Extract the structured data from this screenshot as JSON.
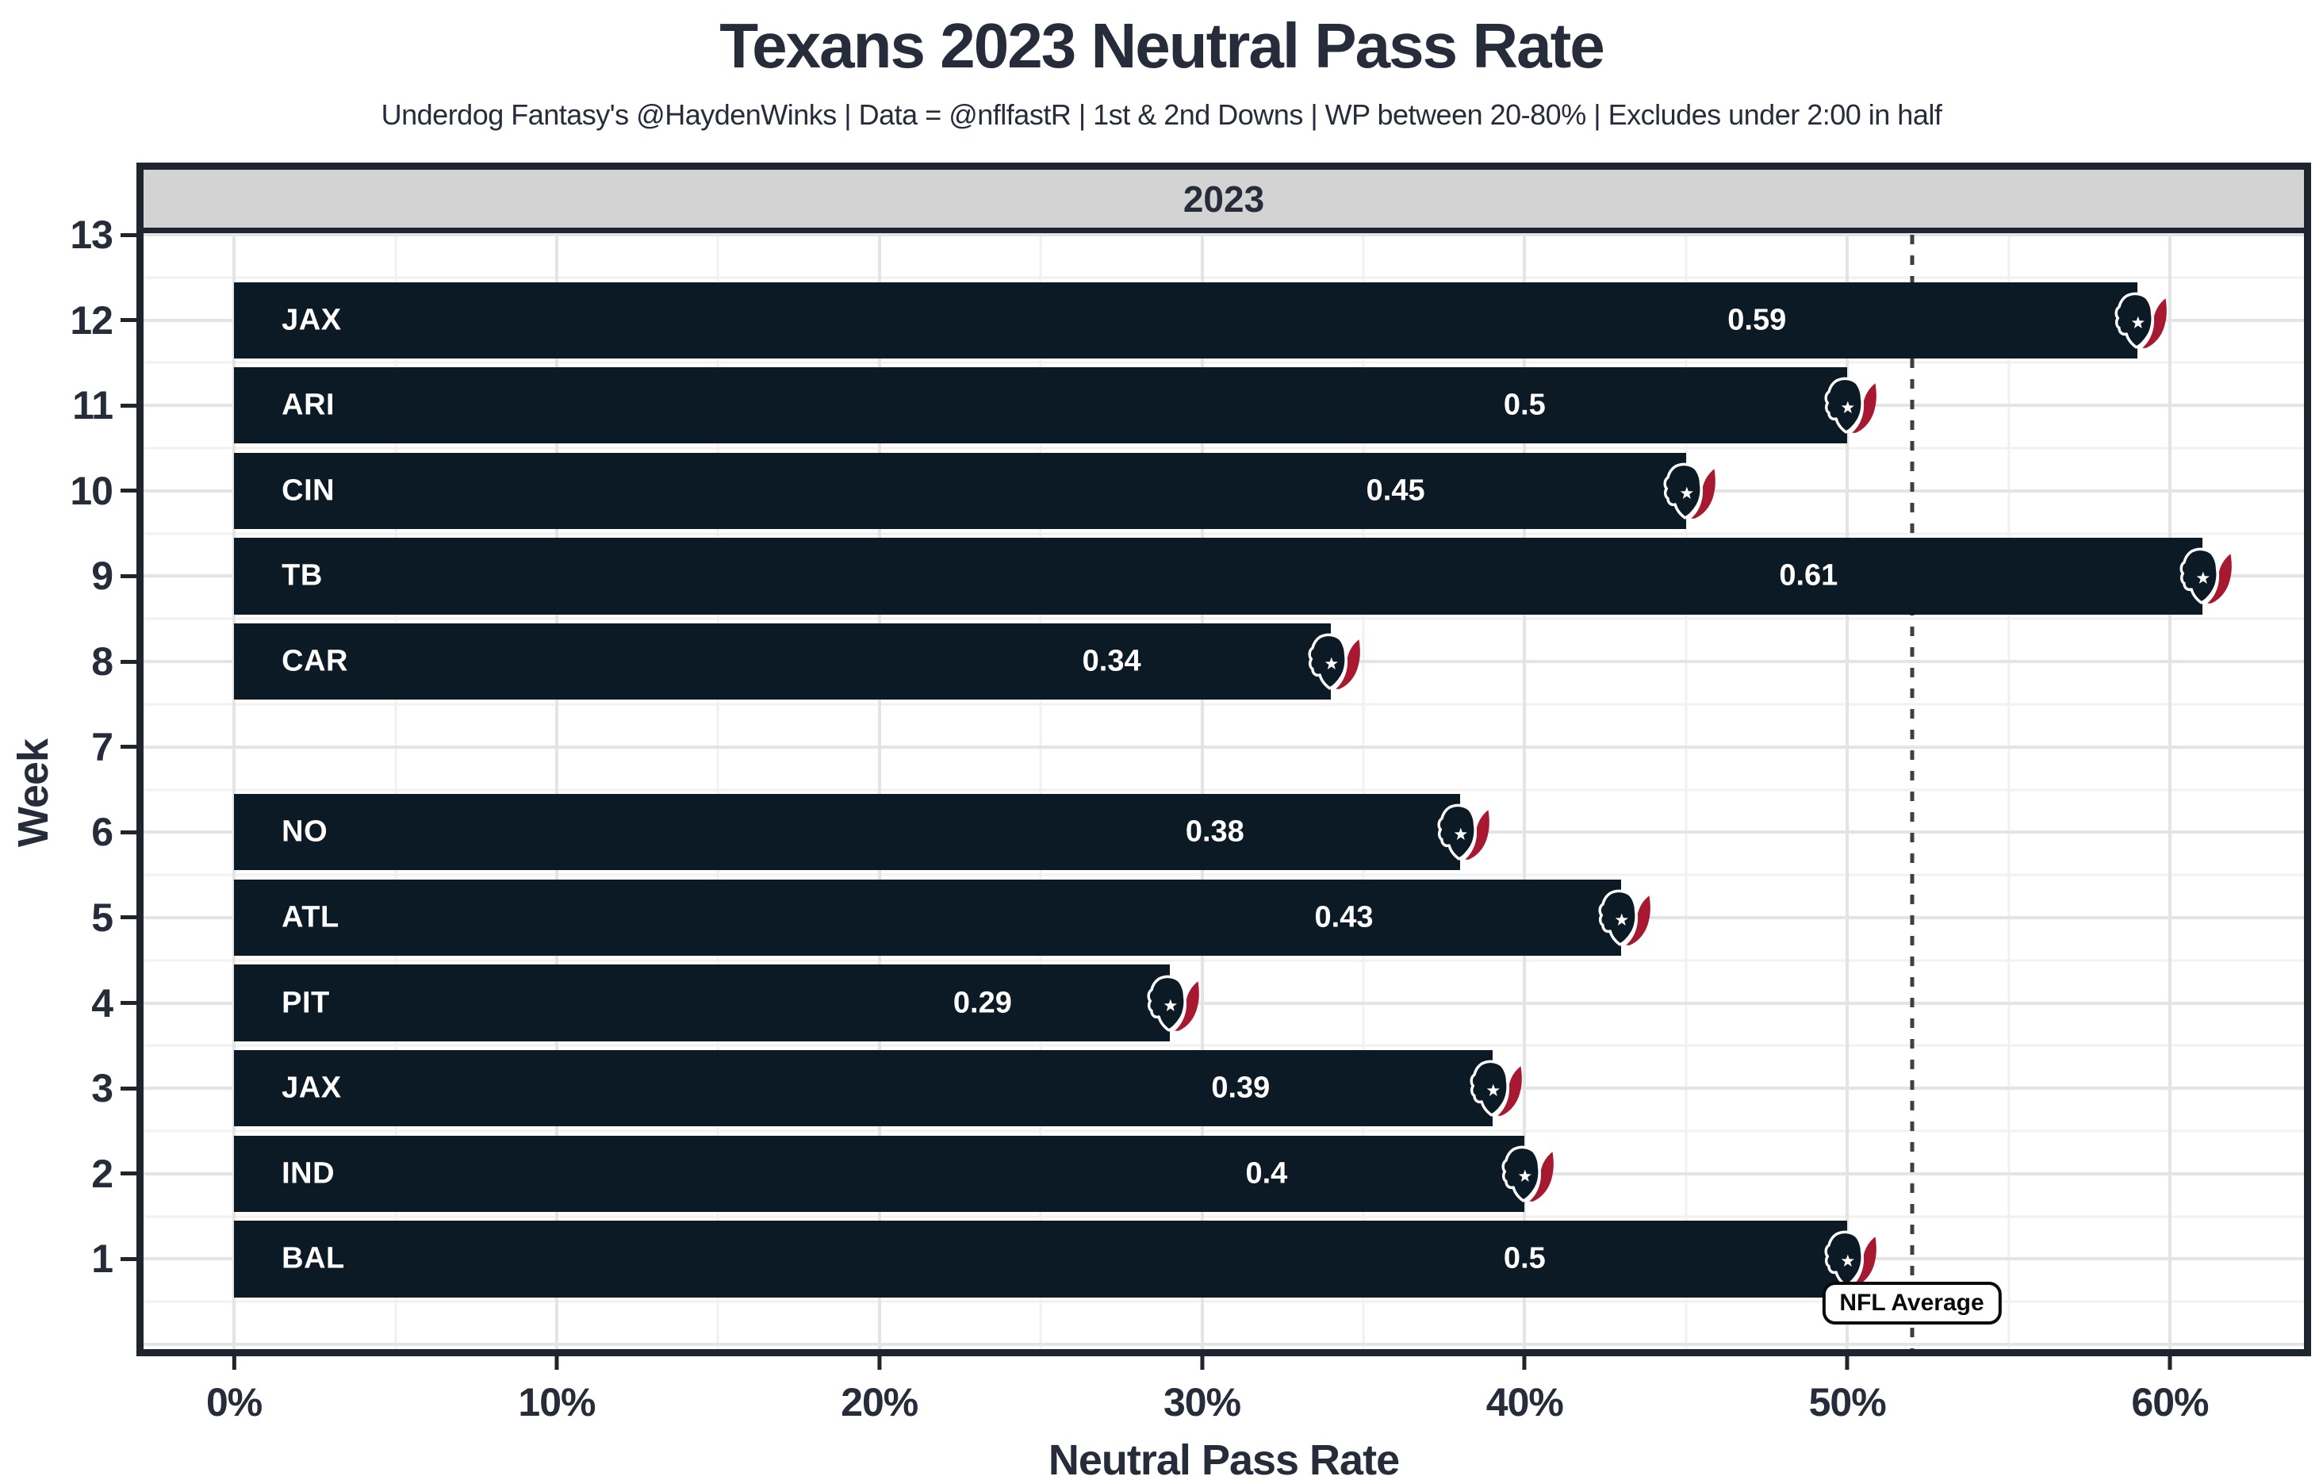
{
  "header": {
    "title": "Texans 2023 Neutral Pass Rate",
    "subtitle": "Underdog Fantasy's @HaydenWinks | Data = @nflfastR | 1st & 2nd Downs | WP between 20-80% | Excludes under 2:00 in half"
  },
  "chart_data": {
    "type": "bar",
    "orientation": "horizontal",
    "title": "Texans 2023 Neutral Pass Rate",
    "facet_label": "2023",
    "xlabel": "Neutral Pass Rate",
    "ylabel": "Week",
    "x_axis": {
      "tick_values": [
        0,
        10,
        20,
        30,
        40,
        50,
        60
      ],
      "tick_labels": [
        "0%",
        "10%",
        "20%",
        "30%",
        "40%",
        "50%",
        "60%"
      ],
      "minor_tick_values": [
        5,
        15,
        25,
        35,
        45,
        55
      ],
      "range_max_pct": 64
    },
    "y_axis": {
      "tick_values": [
        13,
        12,
        11,
        10,
        9,
        8,
        7,
        6,
        5,
        4,
        3,
        2,
        1
      ],
      "week_min": 1,
      "week_max": 13
    },
    "bars": [
      {
        "week": 12,
        "opponent": "JAX",
        "value": 0.59,
        "value_label": "0.59"
      },
      {
        "week": 11,
        "opponent": "ARI",
        "value": 0.5,
        "value_label": "0.5"
      },
      {
        "week": 10,
        "opponent": "CIN",
        "value": 0.45,
        "value_label": "0.45"
      },
      {
        "week": 9,
        "opponent": "TB",
        "value": 0.61,
        "value_label": "0.61"
      },
      {
        "week": 8,
        "opponent": "CAR",
        "value": 0.34,
        "value_label": "0.34"
      },
      {
        "week": 6,
        "opponent": "NO",
        "value": 0.38,
        "value_label": "0.38"
      },
      {
        "week": 5,
        "opponent": "ATL",
        "value": 0.43,
        "value_label": "0.43"
      },
      {
        "week": 4,
        "opponent": "PIT",
        "value": 0.29,
        "value_label": "0.29"
      },
      {
        "week": 3,
        "opponent": "JAX",
        "value": 0.39,
        "value_label": "0.39"
      },
      {
        "week": 2,
        "opponent": "IND",
        "value": 0.4,
        "value_label": "0.4"
      },
      {
        "week": 1,
        "opponent": "BAL",
        "value": 0.5,
        "value_label": "0.5"
      }
    ],
    "nfl_average": {
      "value": 0.52,
      "label": "NFL Average"
    },
    "colors": {
      "bar": "#0c1a26",
      "logo_red": "#A71930",
      "strip_bg": "#d3d3d3",
      "frame": "#20242e",
      "text": "#262c3a",
      "grid_major": "#e4e4e4",
      "grid_minor": "#f1f1f1",
      "avg_line": "#3f3f3f",
      "bar_text": "#ffffff",
      "panel_bg": "#ffffff"
    }
  }
}
